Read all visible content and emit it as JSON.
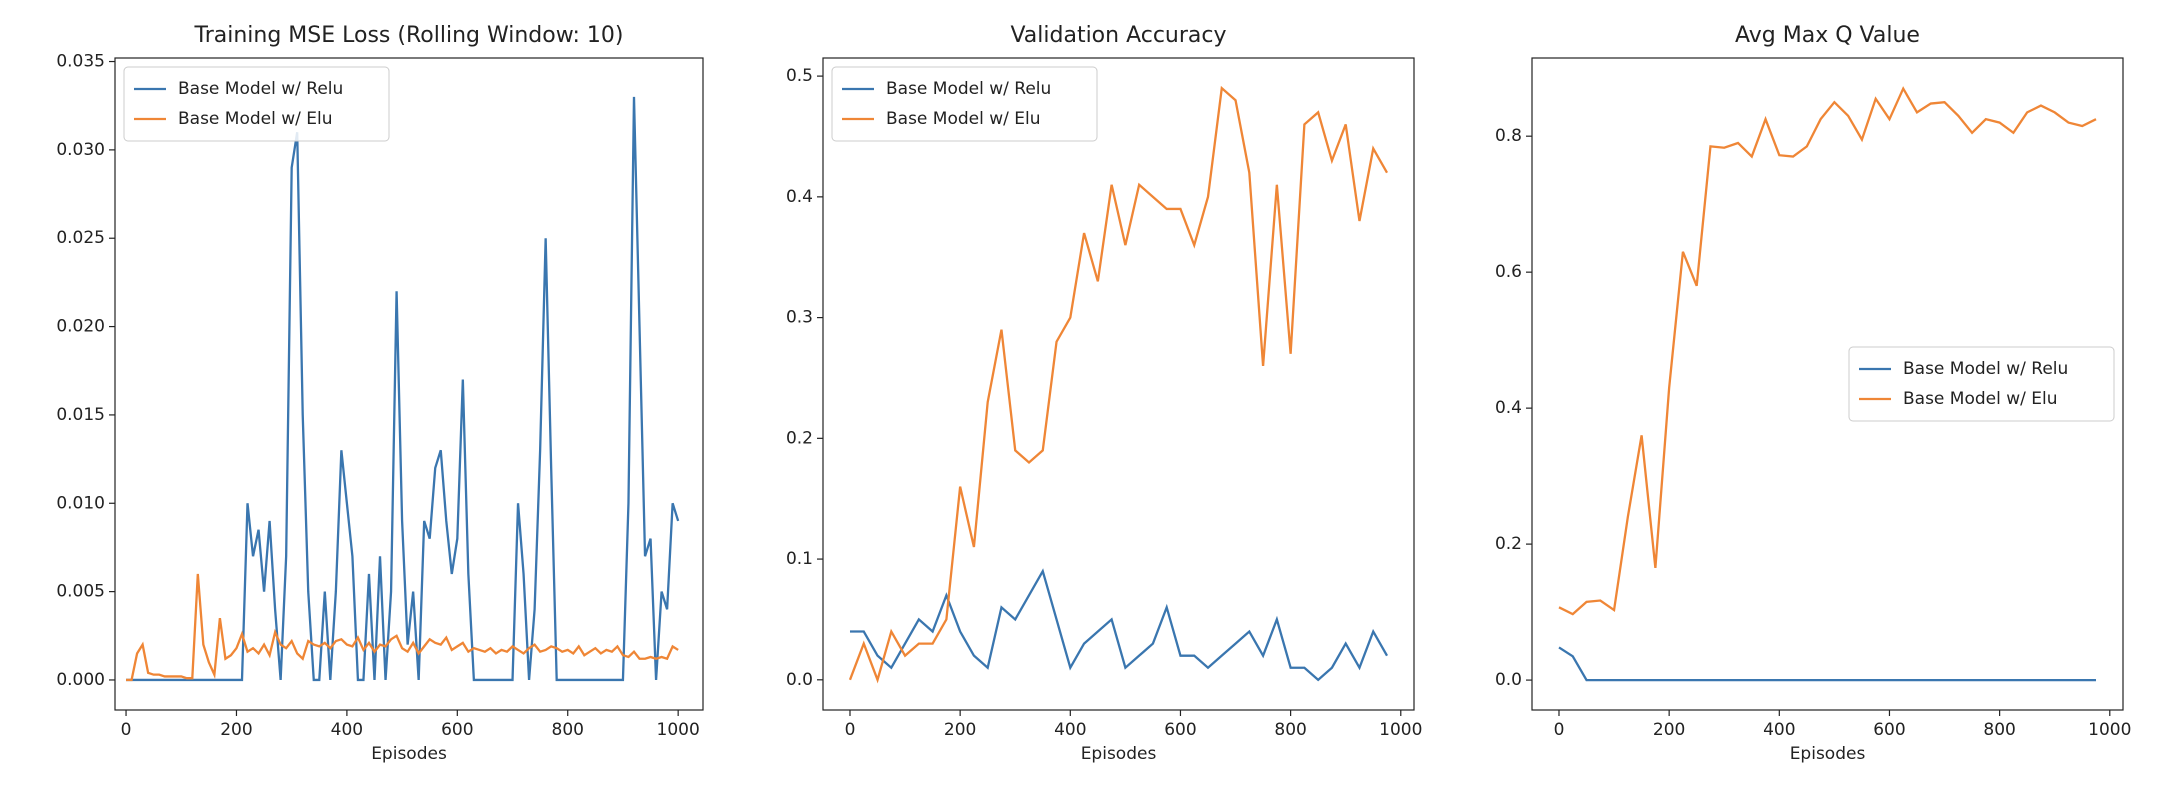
{
  "chart_data": [
    {
      "type": "line",
      "title": "Training MSE Loss (Rolling Window: 10)",
      "x_label": "Episodes",
      "legend": "upper left",
      "xlim": [
        -20,
        1045
      ],
      "xticks": [
        0,
        200,
        400,
        600,
        800,
        1000
      ],
      "ylim": [
        -0.0017,
        0.0352
      ],
      "yticks": [
        {
          "value": 0,
          "label": "0.000"
        },
        {
          "value": 0.005,
          "label": "0.005"
        },
        {
          "value": 0.01,
          "label": "0.010"
        },
        {
          "value": 0.015,
          "label": "0.015"
        },
        {
          "value": 0.02,
          "label": "0.020"
        },
        {
          "value": 0.025,
          "label": "0.025"
        },
        {
          "value": 0.03,
          "label": "0.030"
        },
        {
          "value": 0.035,
          "label": "0.035"
        }
      ],
      "x": [
        0,
        10,
        20,
        30,
        40,
        50,
        60,
        70,
        80,
        90,
        100,
        110,
        120,
        130,
        140,
        150,
        160,
        170,
        180,
        190,
        200,
        210,
        220,
        230,
        240,
        250,
        260,
        270,
        280,
        290,
        300,
        310,
        320,
        330,
        340,
        350,
        360,
        370,
        380,
        390,
        400,
        410,
        420,
        430,
        440,
        450,
        460,
        470,
        480,
        490,
        500,
        510,
        520,
        530,
        540,
        550,
        560,
        570,
        580,
        590,
        600,
        610,
        620,
        630,
        640,
        650,
        660,
        670,
        680,
        690,
        700,
        710,
        720,
        730,
        740,
        750,
        760,
        770,
        780,
        790,
        800,
        810,
        820,
        830,
        840,
        850,
        860,
        870,
        880,
        890,
        900,
        910,
        920,
        930,
        940,
        950,
        960,
        970,
        980,
        990,
        1000
      ],
      "series": [
        {
          "name": "Base Model w/ Relu",
          "color": "#3a76af",
          "values": [
            0,
            0,
            0,
            0,
            0,
            0,
            0,
            0,
            0,
            0,
            0,
            0,
            0,
            0,
            0,
            0,
            0,
            0,
            0,
            0,
            0,
            0,
            0.01,
            0.007,
            0.0085,
            0.005,
            0.009,
            0.004,
            0,
            0.007,
            0.029,
            0.031,
            0.015,
            0.005,
            0,
            0,
            0.005,
            0,
            0.005,
            0.013,
            0.01,
            0.007,
            0,
            0,
            0.006,
            0,
            0.007,
            0,
            0.005,
            0.022,
            0.009,
            0.002,
            0.005,
            0,
            0.009,
            0.008,
            0.012,
            0.013,
            0.009,
            0.006,
            0.008,
            0.017,
            0.006,
            0,
            0,
            0,
            0,
            0,
            0,
            0,
            0,
            0.01,
            0.006,
            0,
            0.004,
            0.013,
            0.025,
            0.012,
            0,
            0,
            0,
            0,
            0,
            0,
            0,
            0,
            0,
            0,
            0,
            0,
            0,
            0.01,
            0.033,
            0.02,
            0.007,
            0.008,
            0,
            0.005,
            0.004,
            0.01,
            0.009
          ]
        },
        {
          "name": "Base Model w/ Elu",
          "color": "#ef8636",
          "values": [
            0,
            0,
            0.0015,
            0.002,
            0.0004,
            0.0003,
            0.0003,
            0.0002,
            0.0002,
            0.0002,
            0.0002,
            0.0001,
            0.0001,
            0.006,
            0.002,
            0.001,
            0.0003,
            0.0035,
            0.0012,
            0.0014,
            0.0018,
            0.0026,
            0.0016,
            0.0018,
            0.0015,
            0.002,
            0.0014,
            0.0027,
            0.002,
            0.0018,
            0.0022,
            0.0015,
            0.0012,
            0.0022,
            0.002,
            0.0019,
            0.0021,
            0.0018,
            0.0022,
            0.0023,
            0.002,
            0.0019,
            0.0024,
            0.0017,
            0.0021,
            0.0016,
            0.002,
            0.0019,
            0.0023,
            0.0025,
            0.0018,
            0.0016,
            0.0021,
            0.0015,
            0.0019,
            0.0023,
            0.0021,
            0.002,
            0.0024,
            0.0017,
            0.0019,
            0.0021,
            0.0016,
            0.0018,
            0.0017,
            0.0016,
            0.0018,
            0.0015,
            0.0017,
            0.0016,
            0.0019,
            0.0017,
            0.0015,
            0.0018,
            0.002,
            0.0016,
            0.0017,
            0.0019,
            0.0018,
            0.0016,
            0.0017,
            0.0015,
            0.0019,
            0.0014,
            0.0016,
            0.0018,
            0.0015,
            0.0017,
            0.0016,
            0.0019,
            0.0014,
            0.0013,
            0.0016,
            0.0012,
            0.0012,
            0.0013,
            0.0012,
            0.0013,
            0.0012,
            0.0019,
            0.0017
          ]
        }
      ]
    },
    {
      "type": "line",
      "title": "Validation Accuracy",
      "x_label": "Episodes",
      "legend": "upper left",
      "xlim": [
        -49,
        1024
      ],
      "xticks": [
        0,
        200,
        400,
        600,
        800,
        1000
      ],
      "ylim": [
        -0.025,
        0.515
      ],
      "yticks": [
        {
          "value": 0,
          "label": "0.0"
        },
        {
          "value": 0.1,
          "label": "0.1"
        },
        {
          "value": 0.2,
          "label": "0.2"
        },
        {
          "value": 0.3,
          "label": "0.3"
        },
        {
          "value": 0.4,
          "label": "0.4"
        },
        {
          "value": 0.5,
          "label": "0.5"
        }
      ],
      "x": [
        0,
        25,
        50,
        75,
        100,
        125,
        150,
        175,
        200,
        225,
        250,
        275,
        300,
        325,
        350,
        375,
        400,
        425,
        450,
        475,
        500,
        525,
        550,
        575,
        600,
        625,
        650,
        675,
        700,
        725,
        750,
        775,
        800,
        825,
        850,
        875,
        900,
        925,
        950,
        975
      ],
      "series": [
        {
          "name": "Base Model w/ Relu",
          "color": "#3a76af",
          "values": [
            0.04,
            0.04,
            0.02,
            0.01,
            0.03,
            0.05,
            0.04,
            0.07,
            0.04,
            0.02,
            0.01,
            0.06,
            0.05,
            0.07,
            0.09,
            0.05,
            0.01,
            0.03,
            0.04,
            0.05,
            0.01,
            0.02,
            0.03,
            0.06,
            0.02,
            0.02,
            0.01,
            0.02,
            0.03,
            0.04,
            0.02,
            0.05,
            0.01,
            0.01,
            0,
            0.01,
            0.03,
            0.01,
            0.04,
            0.02
          ]
        },
        {
          "name": "Base Model w/ Elu",
          "color": "#ef8636",
          "values": [
            0,
            0.03,
            0,
            0.04,
            0.02,
            0.03,
            0.03,
            0.05,
            0.16,
            0.11,
            0.23,
            0.29,
            0.19,
            0.18,
            0.19,
            0.28,
            0.3,
            0.37,
            0.33,
            0.41,
            0.36,
            0.41,
            0.4,
            0.39,
            0.39,
            0.36,
            0.4,
            0.49,
            0.48,
            0.42,
            0.26,
            0.41,
            0.27,
            0.46,
            0.47,
            0.43,
            0.46,
            0.38,
            0.44,
            0.42
          ]
        }
      ]
    },
    {
      "type": "line",
      "title": "Avg Max Q Value",
      "x_label": "Episodes",
      "legend": "center right",
      "xlim": [
        -49,
        1024
      ],
      "xticks": [
        0,
        200,
        400,
        600,
        800,
        1000
      ],
      "ylim": [
        -0.044,
        0.915
      ],
      "yticks": [
        {
          "value": 0,
          "label": "0.0"
        },
        {
          "value": 0.2,
          "label": "0.2"
        },
        {
          "value": 0.4,
          "label": "0.4"
        },
        {
          "value": 0.6,
          "label": "0.6"
        },
        {
          "value": 0.8,
          "label": "0.8"
        }
      ],
      "x": [
        0,
        25,
        50,
        75,
        100,
        125,
        150,
        175,
        200,
        225,
        250,
        275,
        300,
        325,
        350,
        375,
        400,
        425,
        450,
        475,
        500,
        525,
        550,
        575,
        600,
        625,
        650,
        675,
        700,
        725,
        750,
        775,
        800,
        825,
        850,
        875,
        900,
        925,
        950,
        975
      ],
      "series": [
        {
          "name": "Base Model w/ Relu",
          "color": "#3a76af",
          "values": [
            0.048,
            0.035,
            0,
            0,
            0,
            0,
            0,
            0,
            0,
            0,
            0,
            0,
            0,
            0,
            0,
            0,
            0,
            0,
            0,
            0,
            0,
            0,
            0,
            0,
            0,
            0,
            0,
            0,
            0,
            0,
            0,
            0,
            0,
            0,
            0,
            0,
            0,
            0,
            0,
            0
          ]
        },
        {
          "name": "Base Model w/ Elu",
          "color": "#ef8636",
          "values": [
            0.107,
            0.097,
            0.115,
            0.117,
            0.103,
            0.24,
            0.36,
            0.165,
            0.43,
            0.63,
            0.58,
            0.785,
            0.783,
            0.79,
            0.77,
            0.825,
            0.772,
            0.77,
            0.785,
            0.825,
            0.85,
            0.83,
            0.795,
            0.855,
            0.825,
            0.87,
            0.835,
            0.848,
            0.85,
            0.83,
            0.805,
            0.825,
            0.82,
            0.805,
            0.835,
            0.845,
            0.835,
            0.82,
            0.815,
            0.825
          ]
        }
      ]
    }
  ]
}
